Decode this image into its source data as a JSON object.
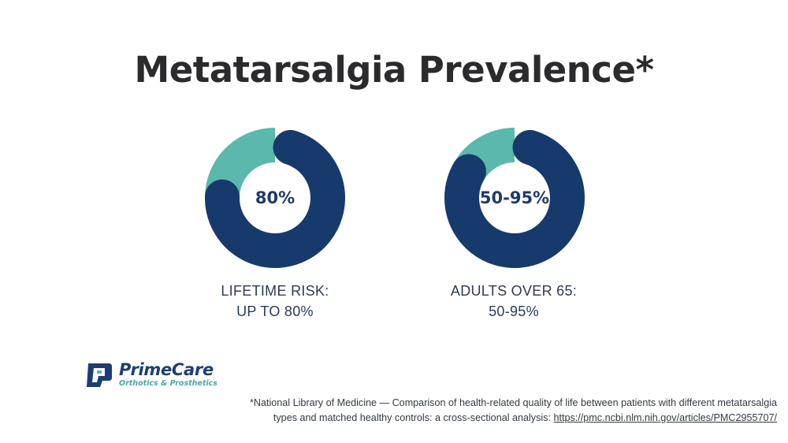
{
  "slide": {
    "title": "Metatarsalgia Prevalence*"
  },
  "colors": {
    "primary": "#173a6c",
    "accent": "#5bb8ac",
    "title": "#2b2b2e"
  },
  "chart_data": [
    {
      "type": "pie",
      "style": "donut",
      "center_label": "80%",
      "caption_line1": "LIFETIME RISK:",
      "caption_line2": "UP TO 80%",
      "slices": [
        {
          "value": 80,
          "color": "#173a6c"
        },
        {
          "value": 20,
          "color": "#5bb8ac"
        }
      ]
    },
    {
      "type": "pie",
      "style": "donut",
      "center_label": "50-95%",
      "caption_line1": "ADULTS OVER 65:",
      "caption_line2": "50-95%",
      "slices": [
        {
          "value": 88,
          "color": "#173a6c"
        },
        {
          "value": 12,
          "color": "#5bb8ac"
        }
      ]
    }
  ],
  "logo": {
    "name": "PrimeCare",
    "tagline": "Orthotics & Prosthetics",
    "icon": "primecare-logo-icon"
  },
  "footnote": {
    "line1": "*National Library of Medicine — Comparison of health-related quality of life between patients with different metatarsalgia",
    "line2_text": "types and matched healthy controls: a cross-sectional analysis: ",
    "link_text": "https://pmc.ncbi.nlm.nih.gov/articles/PMC2955707/"
  }
}
